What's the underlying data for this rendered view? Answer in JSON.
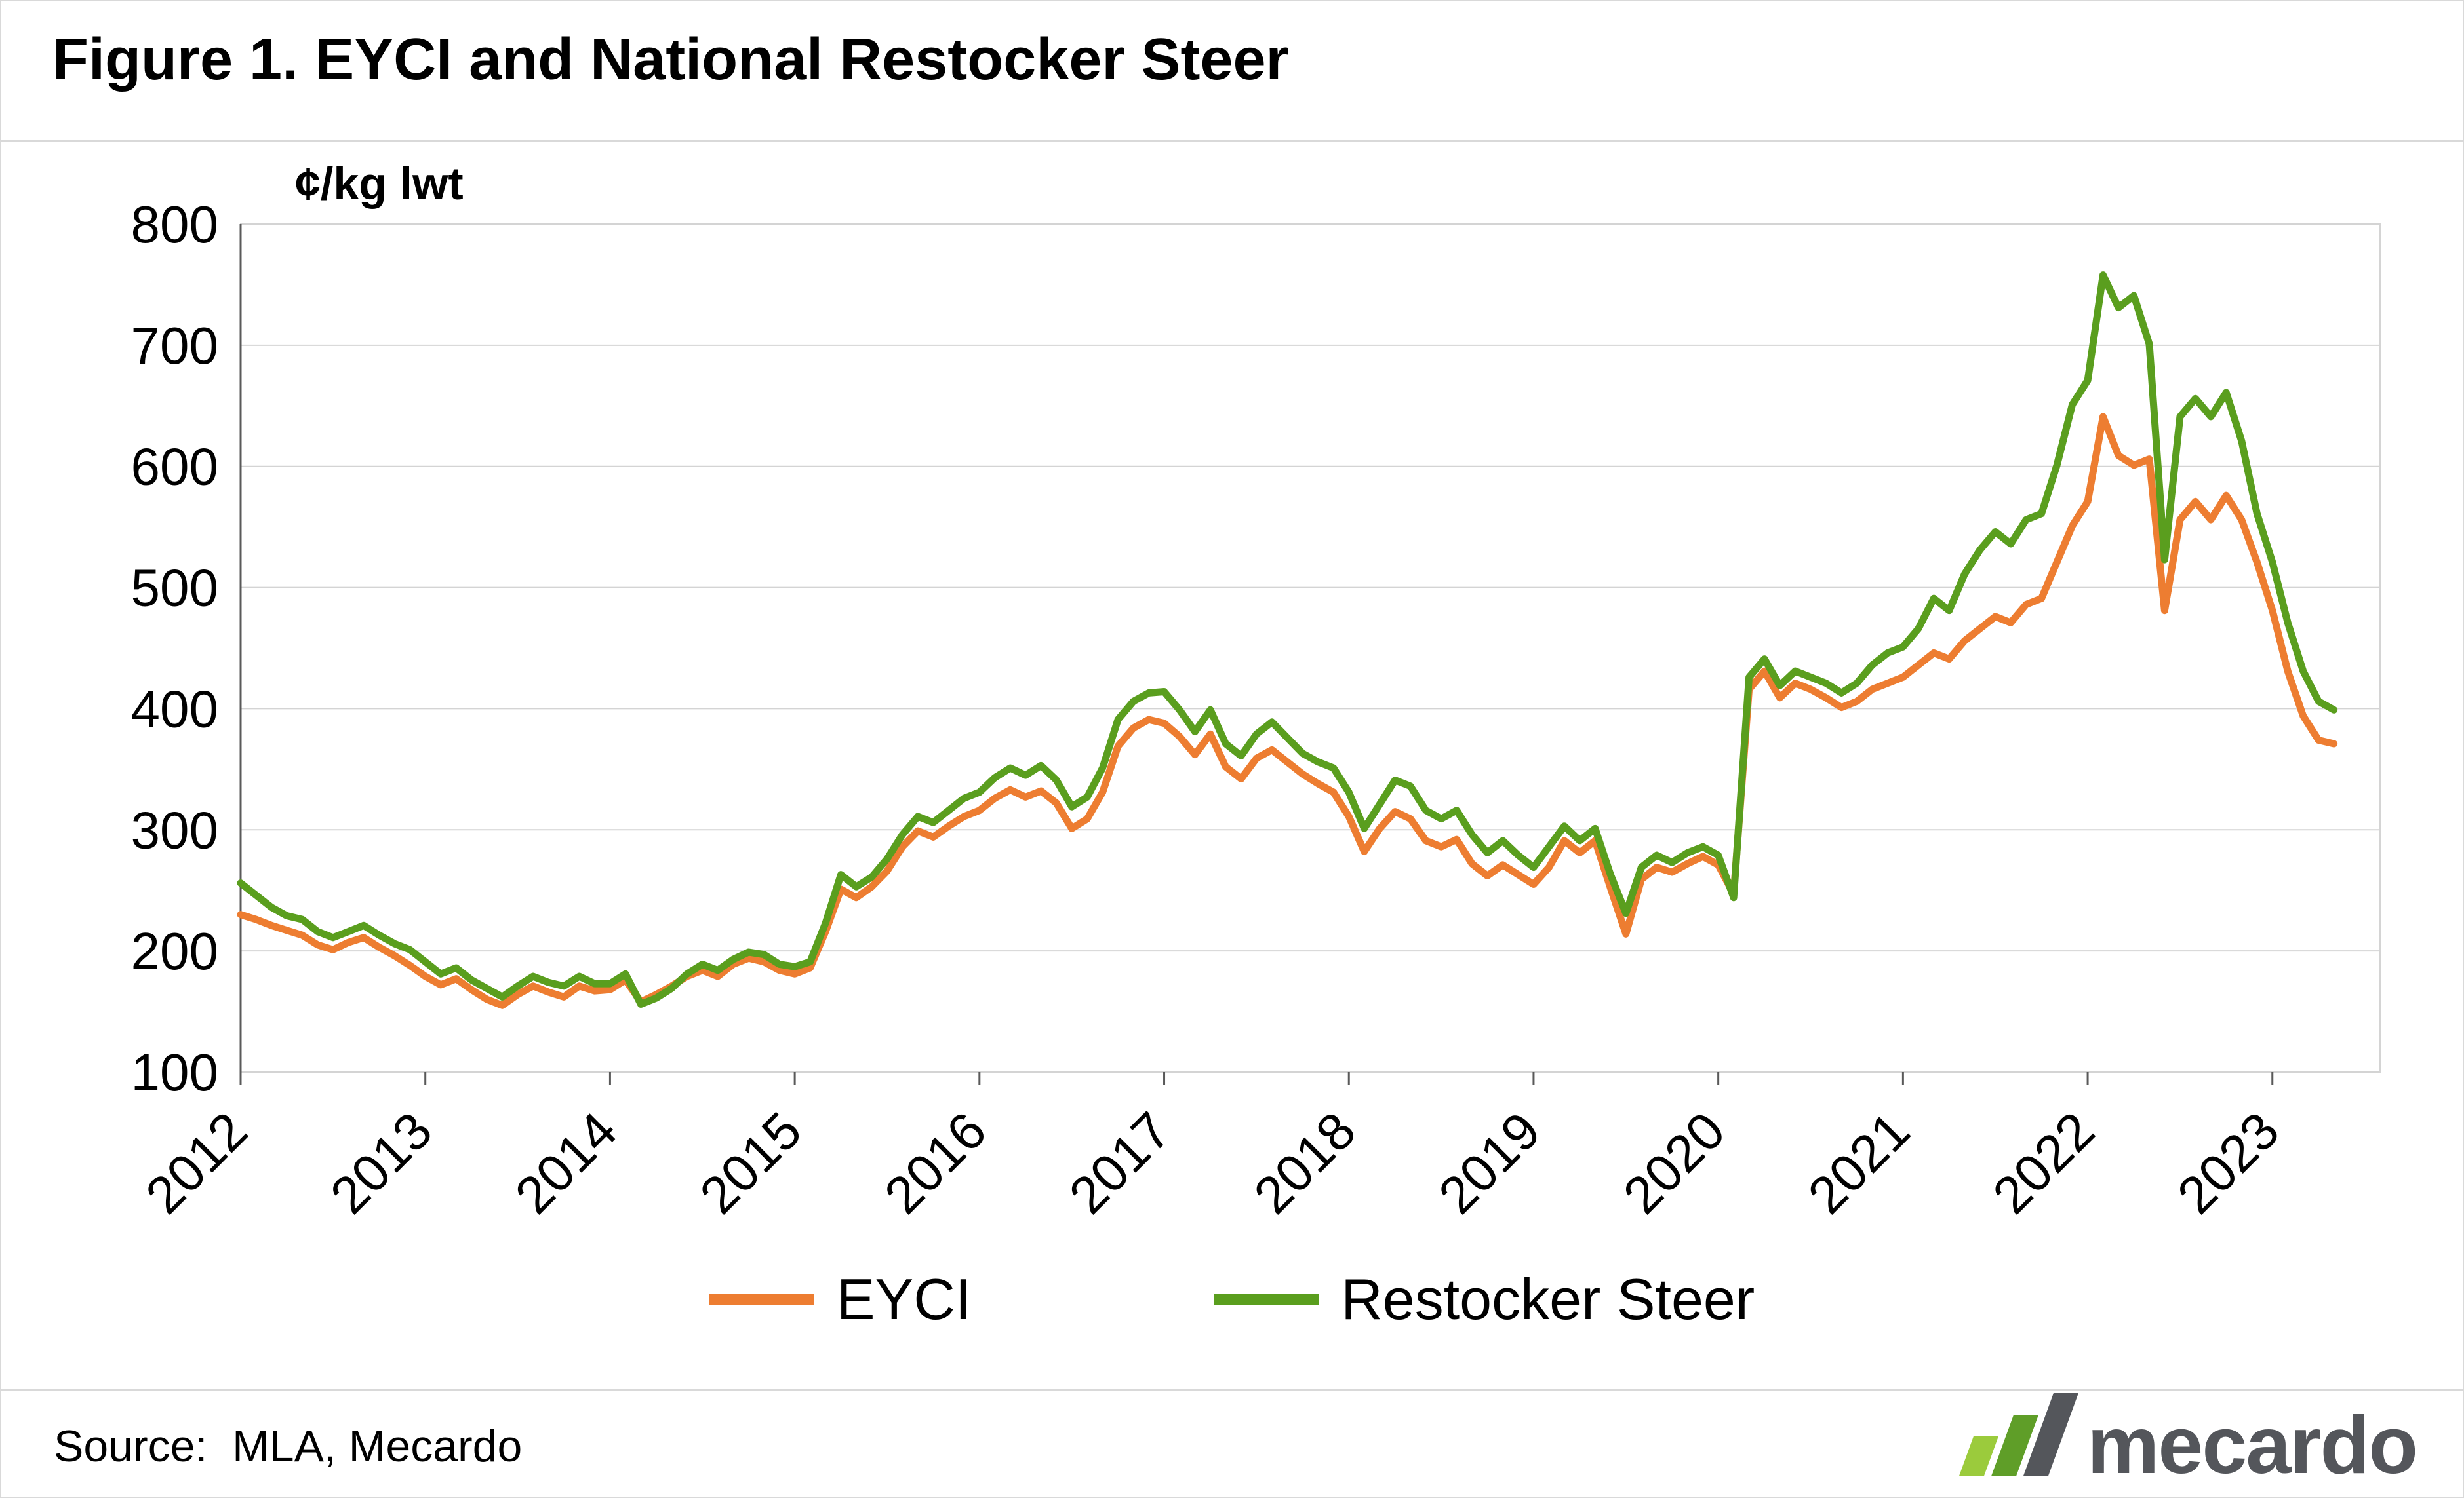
{
  "header": {
    "title": "Figure 1. EYCI and National Restocker Steer"
  },
  "footer": {
    "source": "Source:  MLA, Mecardo",
    "logo": {
      "text": "mecardo",
      "icon": "bar-chart-logo-icon",
      "colors": [
        "#9BCB3C",
        "#5F9E28",
        "#54565B"
      ]
    }
  },
  "chart_data": {
    "type": "line",
    "title": "Figure 1. EYCI and National Restocker Steer",
    "xlabel": "",
    "ylabel": "¢/kg lwt",
    "ylim": [
      100,
      800
    ],
    "xlim": [
      2012,
      2023.583
    ],
    "yticks": [
      100,
      200,
      300,
      400,
      500,
      600,
      700,
      800
    ],
    "xticks": [
      2012,
      2013,
      2014,
      2015,
      2016,
      2017,
      2018,
      2019,
      2020,
      2021,
      2022,
      2023
    ],
    "grid": "horizontal",
    "legend_position": "bottom",
    "frequency": "monthly",
    "x_start": 2012.0,
    "x_step": 0.0833333,
    "series": [
      {
        "name": "EYCI",
        "color": "#ED7D31",
        "values": [
          230,
          226,
          221,
          217,
          213,
          205,
          201,
          207,
          211,
          203,
          196,
          188,
          179,
          172,
          177,
          168,
          160,
          155,
          164,
          171,
          166,
          162,
          171,
          167,
          168,
          176,
          158,
          164,
          171,
          179,
          184,
          179,
          189,
          194,
          191,
          184,
          181,
          186,
          216,
          251,
          244,
          253,
          266,
          286,
          299,
          294,
          303,
          311,
          316,
          326,
          333,
          327,
          332,
          322,
          301,
          309,
          331,
          369,
          384,
          391,
          388,
          377,
          362,
          379,
          352,
          342,
          359,
          366,
          356,
          346,
          338,
          331,
          311,
          282,
          301,
          315,
          309,
          291,
          286,
          292,
          272,
          262,
          271,
          263,
          255,
          269,
          291,
          281,
          291,
          252,
          214,
          259,
          269,
          265,
          272,
          278,
          271,
          247,
          416,
          431,
          409,
          421,
          416,
          409,
          401,
          406,
          416,
          421,
          426,
          436,
          446,
          441,
          456,
          466,
          476,
          471,
          486,
          491,
          521,
          551,
          571,
          641,
          609,
          601,
          606,
          481,
          556,
          571,
          556,
          576,
          556,
          521,
          481,
          431,
          394,
          374,
          371
        ]
      },
      {
        "name": "Restocker Steer",
        "color": "#5A9E1E",
        "values": [
          256,
          246,
          236,
          229,
          226,
          216,
          211,
          216,
          221,
          213,
          206,
          201,
          191,
          181,
          186,
          176,
          169,
          162,
          171,
          179,
          174,
          171,
          179,
          173,
          173,
          181,
          156,
          161,
          169,
          181,
          189,
          184,
          193,
          199,
          197,
          189,
          187,
          191,
          223,
          263,
          253,
          261,
          276,
          296,
          311,
          306,
          316,
          326,
          331,
          343,
          351,
          345,
          353,
          341,
          319,
          327,
          351,
          391,
          406,
          413,
          414,
          399,
          381,
          399,
          371,
          361,
          379,
          389,
          376,
          363,
          356,
          351,
          331,
          301,
          321,
          341,
          336,
          316,
          309,
          316,
          296,
          281,
          291,
          279,
          269,
          286,
          303,
          291,
          301,
          263,
          231,
          269,
          279,
          273,
          281,
          286,
          279,
          244,
          426,
          441,
          419,
          431,
          426,
          421,
          413,
          421,
          436,
          446,
          451,
          466,
          491,
          481,
          511,
          531,
          546,
          536,
          556,
          561,
          601,
          651,
          671,
          758,
          731,
          741,
          701,
          523,
          641,
          656,
          641,
          661,
          621,
          561,
          521,
          471,
          431,
          406,
          399
        ]
      }
    ]
  }
}
